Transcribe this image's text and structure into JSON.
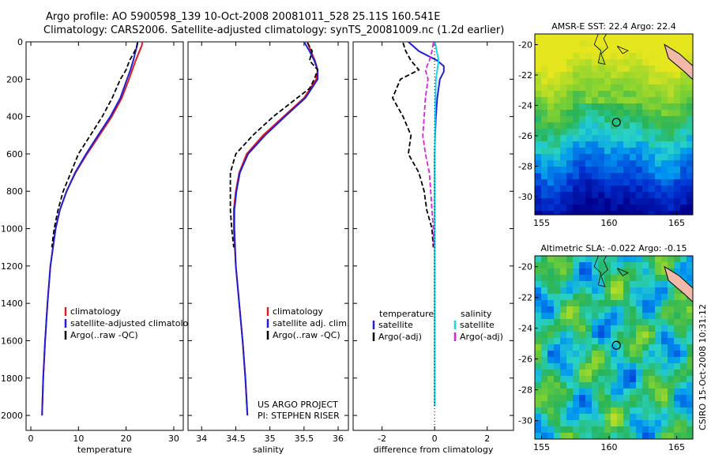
{
  "header": {
    "line1": "Argo profile: AO 5900598_139 10-Oct-2008 20081011_528 25.11S 160.541E",
    "line2": "Climatology: CARS2006. Satellite-adjusted climatology: synTS_20081009.nc (1.2d earlier)"
  },
  "colors": {
    "climatology": "#e41a1c",
    "satellite": "#1f1fd6",
    "argo": "#000000",
    "sat_salinity": "#19d8e6",
    "argo_salinity_diff": "#e01ee0"
  },
  "credits": {
    "project": "US ARGO PROJECT",
    "pi": "PI: STEPHEN RISER",
    "side": "CSIRO 15-Oct-2008 10:31:12"
  },
  "chart_data": [
    {
      "id": "temperature",
      "type": "line",
      "xlabel": "temperature",
      "ylabel": "",
      "xlim": [
        -1,
        32
      ],
      "ylim": [
        2080,
        0
      ],
      "xticks": [
        0,
        10,
        20,
        30
      ],
      "yticks": [
        0,
        200,
        400,
        600,
        800,
        1000,
        1200,
        1400,
        1600,
        1800,
        2000
      ],
      "legend": [
        "climatology",
        "satellite-adjusted climatology",
        "Argo(..raw -QC)"
      ],
      "series": [
        {
          "name": "climatology",
          "color": "#e41a1c",
          "dash": "",
          "depth": [
            0,
            20,
            50,
            100,
            150,
            200,
            300,
            400,
            500,
            600,
            700,
            800,
            900,
            1000,
            1200,
            1400,
            1600,
            1800,
            2000
          ],
          "values": [
            23.4,
            23.3,
            22.8,
            22.0,
            21.3,
            20.6,
            19.1,
            17.0,
            14.4,
            11.8,
            9.4,
            7.5,
            6.1,
            5.2,
            4.1,
            3.5,
            3.0,
            2.6,
            2.35
          ]
        },
        {
          "name": "satellite-adjusted climatology",
          "color": "#1f1fd6",
          "dash": "",
          "depth": [
            0,
            20,
            50,
            100,
            150,
            200,
            300,
            400,
            500,
            600,
            700,
            800,
            900,
            1000,
            1200,
            1400,
            1600,
            1800,
            2000
          ],
          "values": [
            22.4,
            22.3,
            22.0,
            21.5,
            20.9,
            20.2,
            18.8,
            16.7,
            14.1,
            11.6,
            9.3,
            7.5,
            6.1,
            5.2,
            4.1,
            3.5,
            3.0,
            2.6,
            2.35
          ]
        },
        {
          "name": "Argo(..raw -QC)",
          "color": "#000000",
          "dash": "6,3",
          "depth": [
            5,
            30,
            60,
            100,
            150,
            200,
            300,
            400,
            500,
            600,
            700,
            800,
            900,
            1000,
            1100
          ],
          "values": [
            22.4,
            22.2,
            21.6,
            20.7,
            20.0,
            18.8,
            17.1,
            15.0,
            12.5,
            10.0,
            8.4,
            6.8,
            5.7,
            4.9,
            4.4
          ]
        }
      ]
    },
    {
      "id": "salinity",
      "type": "line",
      "xlabel": "salinity",
      "xlim": [
        33.8,
        36.15
      ],
      "ylim": [
        2080,
        0
      ],
      "xticks": [
        34,
        34.5,
        35,
        35.5,
        36
      ],
      "legend": [
        "climatology",
        "satellite adj. clim.",
        "Argo(..raw -QC)"
      ],
      "series": [
        {
          "name": "climatology",
          "color": "#e41a1c",
          "dash": "",
          "depth": [
            0,
            50,
            100,
            150,
            200,
            300,
            400,
            500,
            600,
            700,
            800,
            900,
            1000,
            1200,
            1400,
            1600,
            1800,
            2000
          ],
          "values": [
            35.55,
            35.6,
            35.66,
            35.7,
            35.68,
            35.5,
            35.2,
            34.9,
            34.66,
            34.55,
            34.5,
            34.47,
            34.47,
            34.5,
            34.55,
            34.6,
            34.64,
            34.67
          ]
        },
        {
          "name": "satellite adj. clim.",
          "color": "#1f1fd6",
          "dash": "",
          "depth": [
            0,
            50,
            100,
            150,
            200,
            300,
            400,
            500,
            600,
            700,
            800,
            900,
            1000,
            1200,
            1400,
            1600,
            1800,
            2000
          ],
          "values": [
            35.5,
            35.58,
            35.65,
            35.7,
            35.7,
            35.52,
            35.22,
            34.93,
            34.68,
            34.56,
            34.51,
            34.48,
            34.48,
            34.5,
            34.55,
            34.6,
            34.64,
            34.67
          ]
        },
        {
          "name": "Argo(..raw -QC)",
          "color": "#000000",
          "dash": "6,3",
          "depth": [
            5,
            50,
            100,
            150,
            200,
            250,
            300,
            400,
            500,
            600,
            700,
            800,
            900,
            1000,
            1100
          ],
          "values": [
            35.55,
            35.62,
            35.58,
            35.7,
            35.65,
            35.58,
            35.4,
            35.05,
            34.75,
            34.5,
            34.42,
            34.42,
            34.42,
            34.44,
            34.47
          ]
        }
      ]
    },
    {
      "id": "difference",
      "type": "line",
      "xlabel": "difference from climatology",
      "xlim": [
        -3.1,
        3.0
      ],
      "ylim": [
        2080,
        0
      ],
      "xticks": [
        -2,
        0,
        2
      ],
      "legend_headers": [
        "temperature",
        "salinity"
      ],
      "legend": [
        "satellite",
        "Argo(-adj)",
        "satellite",
        "Argo(-adj)"
      ],
      "series": [
        {
          "name": "temperature satellite",
          "color": "#1f1fd6",
          "dash": "",
          "depth": [
            0,
            50,
            100,
            130,
            160,
            200,
            300,
            400,
            500,
            600,
            700,
            800,
            1000,
            1200,
            1500,
            1800,
            1950
          ],
          "values": [
            -1.0,
            -0.6,
            0.1,
            0.35,
            0.35,
            0.2,
            0.1,
            0.05,
            0.02,
            0.0,
            0.0,
            0.0,
            0.0,
            0.0,
            0.0,
            0.0,
            0.0
          ]
        },
        {
          "name": "temperature Argo(-adj)",
          "color": "#000000",
          "dash": "6,3",
          "depth": [
            5,
            50,
            100,
            150,
            200,
            300,
            400,
            500,
            600,
            700,
            800,
            900,
            1000,
            1100
          ],
          "values": [
            -1.2,
            -1.1,
            -0.9,
            -0.6,
            -1.3,
            -1.6,
            -1.2,
            -0.9,
            -1.0,
            -0.6,
            -0.4,
            -0.3,
            -0.1,
            -0.05
          ]
        },
        {
          "name": "salinity satellite",
          "color": "#19d8e6",
          "dash": "",
          "depth": [
            0,
            50,
            100,
            200,
            400,
            600,
            800,
            1000,
            1200,
            1500,
            1800,
            1950
          ],
          "values": [
            0.02,
            0.08,
            0.15,
            0.05,
            0.02,
            0.01,
            0.0,
            0.0,
            0.0,
            0.0,
            0.0,
            0.0
          ]
        },
        {
          "name": "salinity Argo(-adj)",
          "color": "#e01ee0",
          "dash": "6,3",
          "depth": [
            5,
            50,
            100,
            150,
            200,
            300,
            400,
            500,
            600,
            700,
            800,
            900,
            1000,
            1100
          ],
          "values": [
            -0.05,
            -0.1,
            -0.2,
            -0.35,
            -0.25,
            -0.35,
            -0.4,
            -0.45,
            -0.35,
            -0.2,
            -0.15,
            -0.1,
            -0.05,
            -0.02
          ]
        }
      ]
    },
    {
      "id": "sst_map",
      "type": "heatmap",
      "title": "AMSR-E SST: 22.4 Argo: 22.4",
      "xlim": [
        154.5,
        166.2
      ],
      "ylim": [
        -31.2,
        -19.3
      ],
      "xticks": [
        155,
        160,
        165
      ],
      "yticks": [
        -20,
        -22,
        -24,
        -26,
        -28,
        -30
      ],
      "marker": {
        "lon": 160.54,
        "lat": -25.11
      }
    },
    {
      "id": "sla_map",
      "type": "heatmap",
      "title": "Altimetric SLA: -0.022 Argo: -0.15",
      "xlim": [
        154.5,
        166.2
      ],
      "ylim": [
        -31.2,
        -19.3
      ],
      "xticks": [
        155,
        160,
        165
      ],
      "yticks": [
        -20,
        -22,
        -24,
        -26,
        -28,
        -30
      ],
      "marker": {
        "lon": 160.54,
        "lat": -25.11
      }
    }
  ]
}
